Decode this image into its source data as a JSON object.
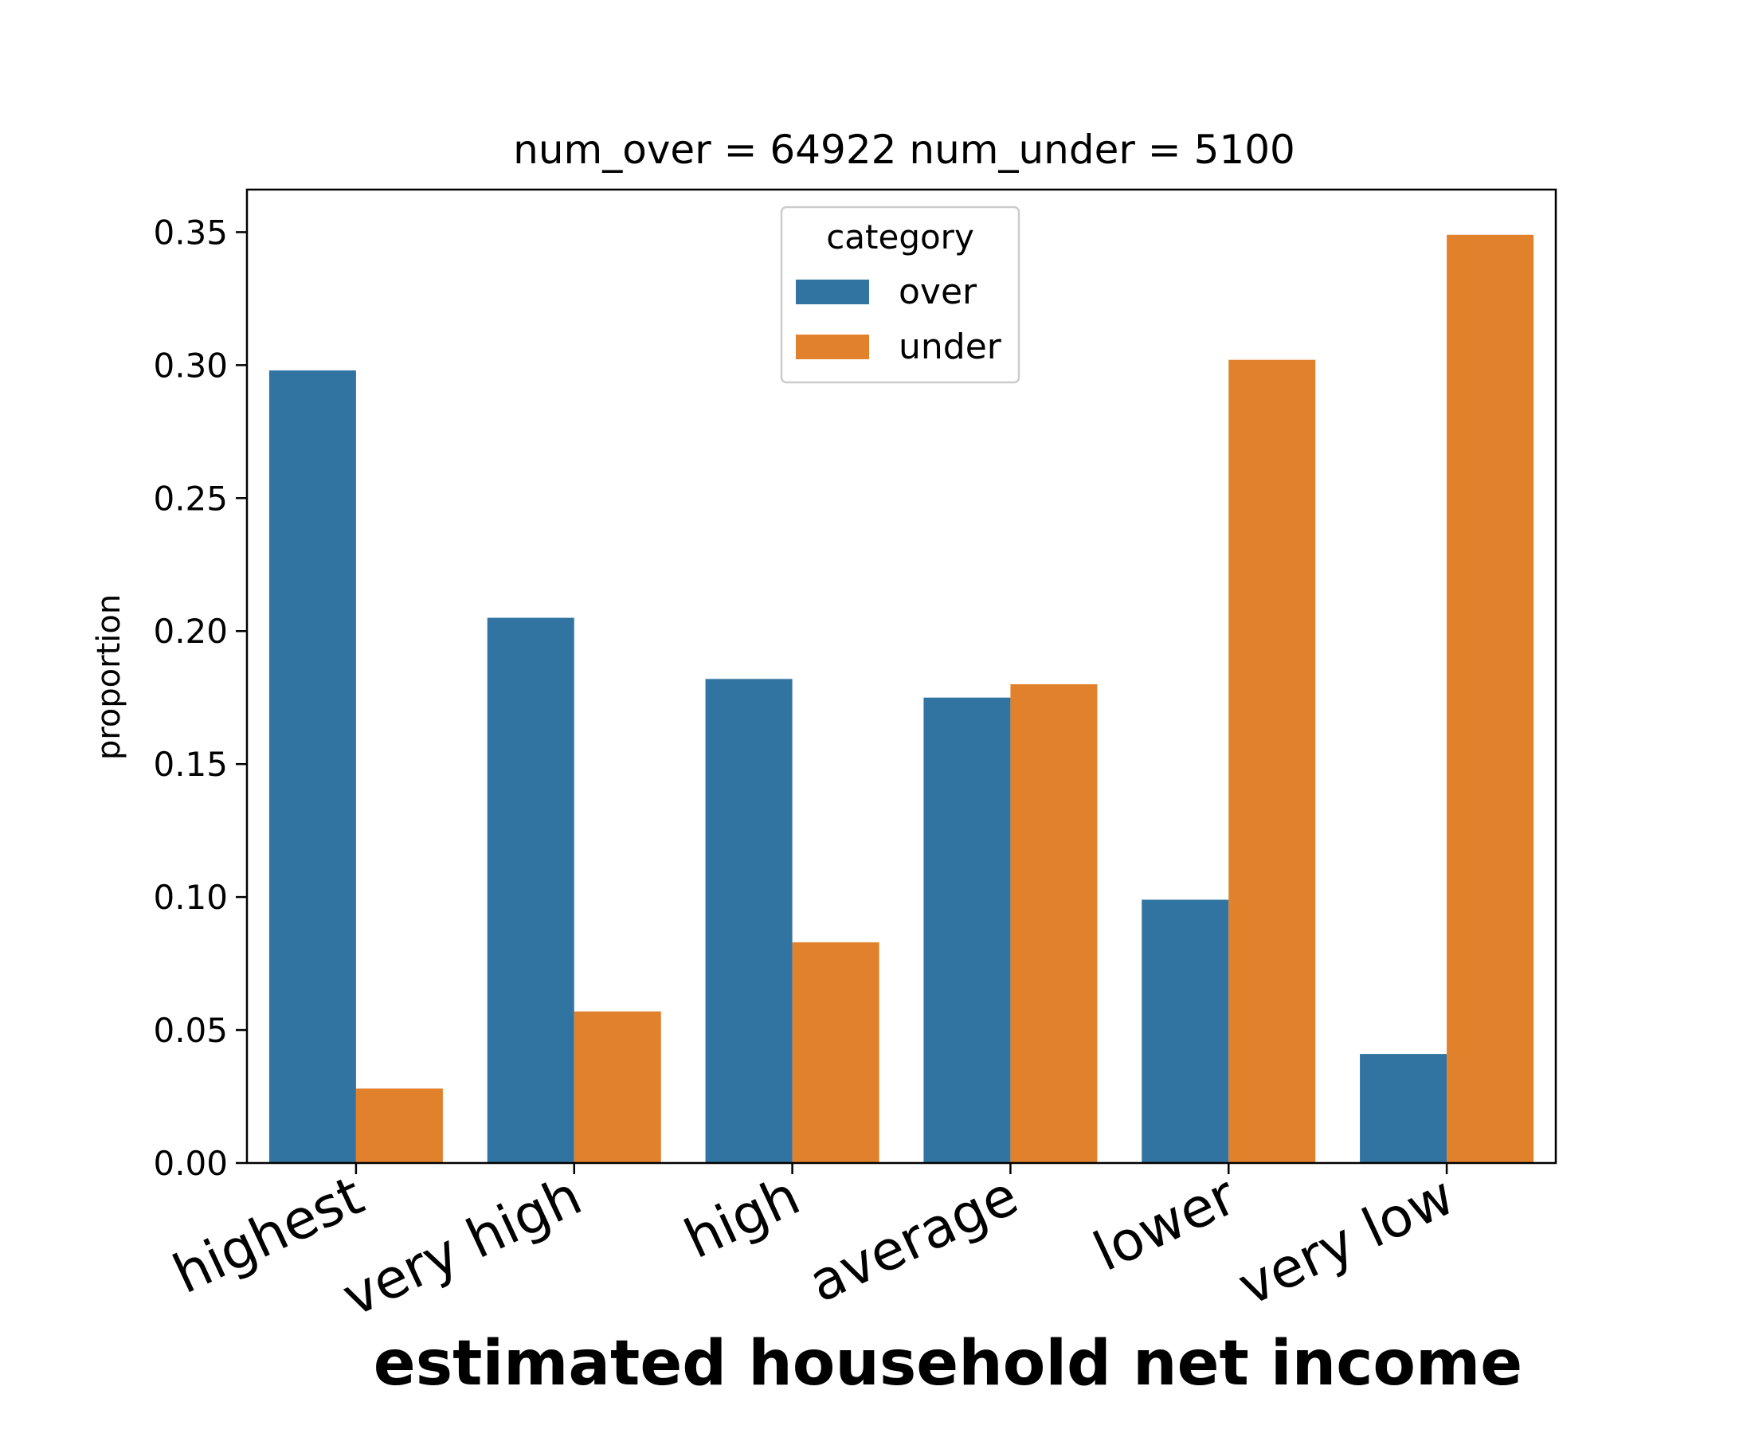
{
  "chart_data": {
    "type": "bar",
    "title": "num_over = 64922  num_under = 5100",
    "xlabel": "estimated household net income",
    "ylabel": "proportion",
    "categories": [
      "highest",
      "very high",
      "high",
      "average",
      "lower",
      "very low"
    ],
    "series": [
      {
        "name": "over",
        "color": "#3274a1",
        "values": [
          0.298,
          0.205,
          0.182,
          0.175,
          0.099,
          0.041
        ]
      },
      {
        "name": "under",
        "color": "#e1812c",
        "values": [
          0.028,
          0.057,
          0.083,
          0.18,
          0.302,
          0.349
        ]
      }
    ],
    "ylim": [
      0,
      0.366
    ],
    "yticks": [
      "0.00",
      "0.05",
      "0.10",
      "0.15",
      "0.20",
      "0.25",
      "0.30",
      "0.35"
    ],
    "legend": {
      "title": "category",
      "position": "top-center"
    },
    "grid": false
  }
}
